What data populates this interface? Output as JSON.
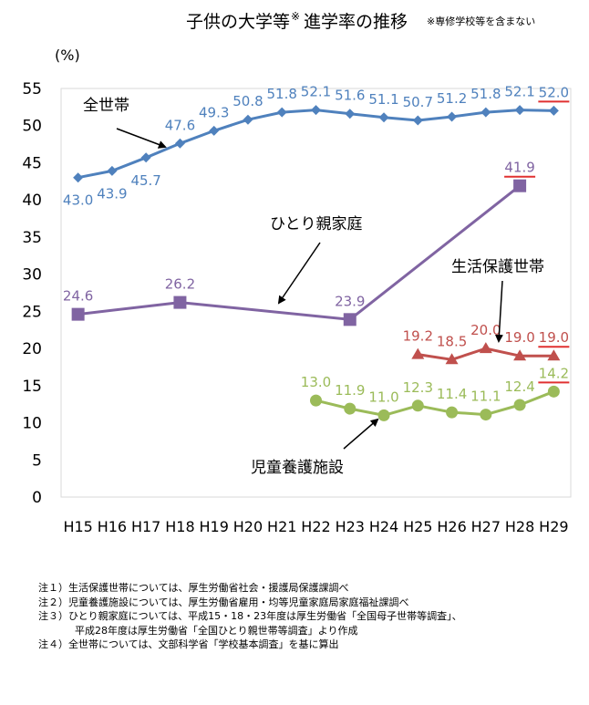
{
  "chart_data": {
    "type": "line",
    "title": "子供の大学等",
    "title_mark": "※",
    "title_suffix": "進学率の推移",
    "title_note": "※専修学校等を含まない",
    "unit_label": "(%)",
    "categories": [
      "H15",
      "H16",
      "H17",
      "H18",
      "H19",
      "H20",
      "H21",
      "H22",
      "H23",
      "H24",
      "H25",
      "H26",
      "H27",
      "H28",
      "H29"
    ],
    "ylim": [
      0,
      55
    ],
    "yticks": [
      0,
      5,
      10,
      15,
      20,
      25,
      30,
      35,
      40,
      45,
      50,
      55
    ],
    "grid": false,
    "series": [
      {
        "name": "全世帯",
        "color": "#4f81bd",
        "marker": "diamond",
        "values": [
          43.0,
          43.9,
          45.7,
          47.6,
          49.3,
          50.8,
          51.8,
          52.1,
          51.6,
          51.1,
          50.7,
          51.2,
          51.8,
          52.1,
          52.0
        ]
      },
      {
        "name": "ひとり親家庭",
        "color": "#8064a2",
        "marker": "square",
        "values": [
          24.6,
          null,
          null,
          26.2,
          null,
          null,
          null,
          null,
          23.9,
          null,
          null,
          null,
          null,
          41.9,
          null
        ]
      },
      {
        "name": "生活保護世帯",
        "color": "#c0504d",
        "marker": "triangle",
        "values": [
          null,
          null,
          null,
          null,
          null,
          null,
          null,
          null,
          null,
          null,
          19.2,
          18.5,
          20.0,
          19.0,
          19.0
        ]
      },
      {
        "name": "児童養護施設",
        "color": "#9bbb59",
        "marker": "circle",
        "values": [
          null,
          null,
          null,
          null,
          null,
          null,
          null,
          13.0,
          11.9,
          11.0,
          12.3,
          11.4,
          11.1,
          12.4,
          14.2
        ]
      }
    ]
  },
  "notes": [
    "注１）生活保護世帯については、厚生労働省社会・援護局保護課調べ",
    "注２）児童養護施設については、厚生労働省雇用・均等児童家庭局家庭福祉課調べ",
    "注３）ひとり親家庭については、平成15・18・23年度は厚生労働省「全国母子世帯等調査」、",
    "平成28年度は厚生労働省「全国ひとり親世帯等調査」より作成",
    "注４）全世帯については、文部科学省「学校基本調査」を基に算出"
  ]
}
